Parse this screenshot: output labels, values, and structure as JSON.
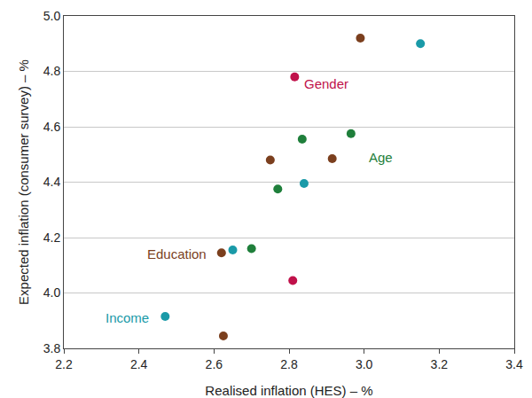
{
  "chart_data": {
    "type": "scatter",
    "x_label": "Realised inflation (HES) – %",
    "y_label": "Expected inflation (consumer survey) – %",
    "xlim": [
      2.2,
      3.4
    ],
    "xticks": [
      2.2,
      2.4,
      2.6,
      2.8,
      {
        "value": 3,
        "label": "3.0"
      },
      3.2,
      3.4
    ],
    "ylim": [
      3.8,
      5
    ],
    "yticks": [
      3.8,
      {
        "value": 4,
        "label": "4.0"
      },
      4.2,
      4.4,
      4.6,
      4.8,
      {
        "value": 5,
        "label": "5.0"
      }
    ],
    "grid": "y",
    "marker": "circle",
    "series": [
      {
        "name": "Education",
        "color": "#7B3F1E",
        "x": [
          2.99,
          2.75,
          2.915,
          2.62,
          2.625
        ],
        "values": [
          4.92,
          4.48,
          4.485,
          4.145,
          3.845
        ]
      },
      {
        "name": "Income",
        "color": "#1A9AA8",
        "x": [
          3.15,
          2.84,
          2.65,
          2.47
        ],
        "values": [
          4.9,
          4.395,
          4.155,
          3.915
        ]
      },
      {
        "name": "Age",
        "color": "#1F7F3B",
        "x": [
          2.835,
          2.965,
          2.77,
          2.7
        ],
        "values": [
          4.555,
          4.575,
          4.375,
          4.16
        ]
      },
      {
        "name": "Gender",
        "color": "#C0114A",
        "x": [
          2.815,
          2.81
        ],
        "values": [
          4.78,
          4.045
        ]
      }
    ],
    "annotations": [
      {
        "text": "Gender",
        "x": 2.9,
        "y": 4.755,
        "color": "#C0114A"
      },
      {
        "text": "Age",
        "x": 3.045,
        "y": 4.49,
        "color": "#1F7F3B"
      },
      {
        "text": "Education",
        "x": 2.5,
        "y": 4.14,
        "color": "#7B3F1E"
      },
      {
        "text": "Income",
        "x": 2.37,
        "y": 3.91,
        "color": "#1A9AA8"
      }
    ]
  }
}
